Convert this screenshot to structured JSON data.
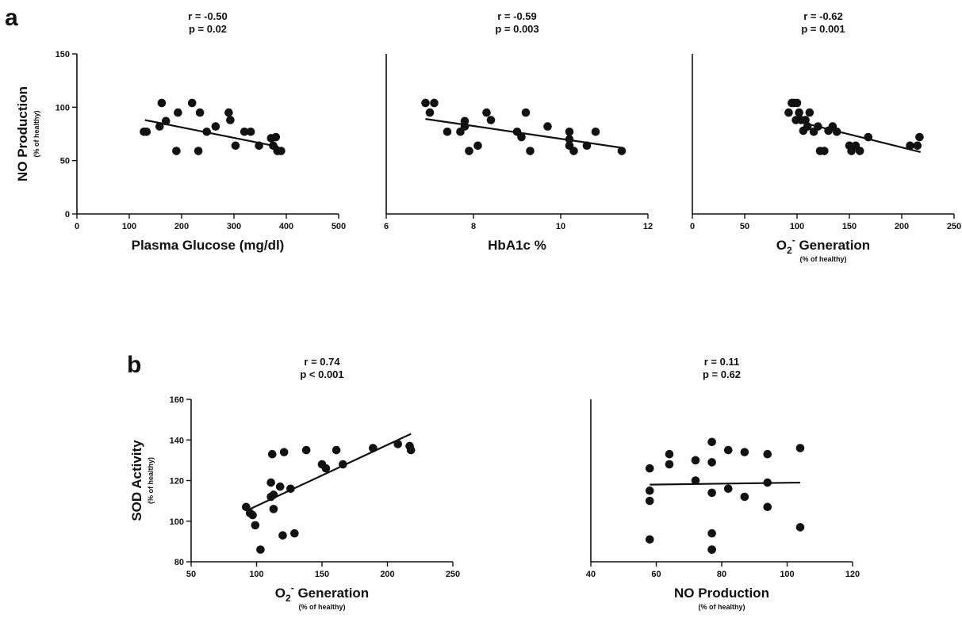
{
  "panels": [
    {
      "label": "a"
    },
    {
      "label": "b"
    }
  ],
  "chart_data": [
    {
      "type": "scatter",
      "panel": "a",
      "stat_r": "r = -0.50",
      "stat_p": "p = 0.02",
      "xlabel": "Plasma Glucose (mg/dl)",
      "xlabel_main": "Plasma Glucose (mg/dl)",
      "xlabel_sup": "",
      "xlabel_tail": "",
      "xlabel_sub": "",
      "ylabel": "NO Production",
      "ylabel_sub": "(% of healthy)",
      "xlim": [
        0,
        500
      ],
      "ylim": [
        0,
        150
      ],
      "xticks": [
        0,
        100,
        200,
        300,
        400,
        500
      ],
      "yticks": [
        0,
        50,
        100,
        150
      ],
      "x": [
        128,
        133,
        158,
        162,
        170,
        190,
        193,
        220,
        232,
        235,
        248,
        265,
        290,
        293,
        303,
        320,
        332,
        348,
        371,
        375,
        380,
        383,
        390
      ],
      "y": [
        77,
        77,
        82,
        104,
        87,
        59,
        95,
        104,
        59,
        95,
        77,
        82,
        95,
        88,
        64,
        77,
        77,
        64,
        71,
        64,
        72,
        59,
        59
      ],
      "fit": [
        [
          130,
          88
        ],
        [
          385,
          63
        ]
      ]
    },
    {
      "type": "scatter",
      "panel": "a",
      "stat_r": "r = -0.59",
      "stat_p": "p = 0.003",
      "xlabel": "HbA1c %",
      "xlabel_main": "HbA1c %",
      "xlabel_sup": "",
      "xlabel_tail": "",
      "xlabel_sub": "",
      "ylabel": "",
      "ylabel_sub": "",
      "xlim": [
        6,
        12
      ],
      "ylim": [
        0,
        150
      ],
      "xticks": [
        6,
        8,
        10,
        12
      ],
      "yticks": [],
      "x": [
        6.9,
        7.1,
        7.0,
        7.4,
        7.7,
        7.8,
        7.8,
        7.9,
        8.1,
        8.3,
        8.4,
        9.0,
        9.1,
        9.2,
        9.3,
        9.7,
        10.2,
        10.2,
        10.2,
        10.3,
        10.6,
        10.8,
        11.4
      ],
      "y": [
        104,
        104,
        95,
        77,
        77,
        87,
        82,
        59,
        64,
        95,
        88,
        77,
        72,
        95,
        59,
        82,
        77,
        70,
        64,
        59,
        64,
        77,
        59
      ],
      "fit": [
        [
          6.9,
          89
        ],
        [
          11.4,
          62
        ]
      ]
    },
    {
      "type": "scatter",
      "panel": "a",
      "stat_r": "r = -0.62",
      "stat_p": "p = 0.001",
      "xlabel": "O2- Generation",
      "xlabel_main": "O",
      "xlabel_sub_char": "2",
      "xlabel_sup": "-",
      "xlabel_tail": " Generation",
      "xlabel_sub": "(% of healthy)",
      "ylabel": "",
      "ylabel_sub": "",
      "xlim": [
        0,
        250
      ],
      "ylim": [
        0,
        150
      ],
      "xticks": [
        0,
        50,
        100,
        150,
        200,
        250
      ],
      "yticks": [],
      "x": [
        92,
        95,
        97,
        99,
        100,
        102,
        104,
        106,
        108,
        110,
        112,
        116,
        120,
        122,
        126,
        130,
        134,
        138,
        150,
        152,
        156,
        160,
        168,
        208,
        215,
        217
      ],
      "y": [
        95,
        104,
        104,
        88,
        104,
        95,
        88,
        78,
        88,
        82,
        95,
        77,
        82,
        59,
        59,
        78,
        82,
        77,
        64,
        59,
        64,
        59,
        72,
        64,
        64,
        72
      ],
      "fit": [
        [
          95,
          88
        ],
        [
          218,
          58
        ]
      ]
    },
    {
      "type": "scatter",
      "panel": "b",
      "stat_r": "r = 0.74",
      "stat_p": "p < 0.001",
      "xlabel": "O2- Generation",
      "xlabel_main": "O",
      "xlabel_sub_char": "2",
      "xlabel_sup": "-",
      "xlabel_tail": " Generation",
      "xlabel_sub": "(% of healthy)",
      "ylabel": "SOD Activity",
      "ylabel_sub": "(% of healthy)",
      "xlim": [
        50,
        250
      ],
      "ylim": [
        80,
        160
      ],
      "xticks": [
        50,
        100,
        150,
        200,
        250
      ],
      "yticks": [
        80,
        100,
        120,
        140,
        160
      ],
      "x": [
        92,
        95,
        97,
        99,
        103,
        111,
        111,
        112,
        113,
        113,
        118,
        120,
        121,
        126,
        129,
        138,
        150,
        153,
        161,
        166,
        189,
        208,
        217,
        218
      ],
      "y": [
        107,
        104,
        103,
        98,
        86,
        119,
        112,
        133,
        113,
        106,
        117,
        93,
        134,
        116,
        94,
        135,
        128,
        126,
        135,
        128,
        136,
        138,
        137,
        135
      ],
      "fit": [
        [
          95,
          106
        ],
        [
          218,
          143
        ]
      ]
    },
    {
      "type": "scatter",
      "panel": "b",
      "stat_r": "r = 0.11",
      "stat_p": "p = 0.62",
      "xlabel": "NO Production",
      "xlabel_main": "NO Production",
      "xlabel_sup": "",
      "xlabel_tail": "",
      "xlabel_sub": "(% of healthy)",
      "ylabel": "",
      "ylabel_sub": "",
      "xlim": [
        40,
        120
      ],
      "ylim": [
        80,
        160
      ],
      "xticks": [
        40,
        60,
        80,
        100,
        120
      ],
      "yticks": [],
      "x": [
        58,
        58,
        58,
        58,
        64,
        64,
        72,
        72,
        77,
        77,
        77,
        77,
        77,
        77,
        82,
        82,
        87,
        87,
        94,
        94,
        94,
        104,
        104
      ],
      "y": [
        126,
        115,
        110,
        91,
        133,
        128,
        130,
        120,
        139,
        129,
        114,
        94,
        86,
        86,
        135,
        116,
        134,
        112,
        133,
        119,
        107,
        136,
        97
      ],
      "fit": [
        [
          58,
          118
        ],
        [
          104,
          119
        ]
      ]
    }
  ]
}
